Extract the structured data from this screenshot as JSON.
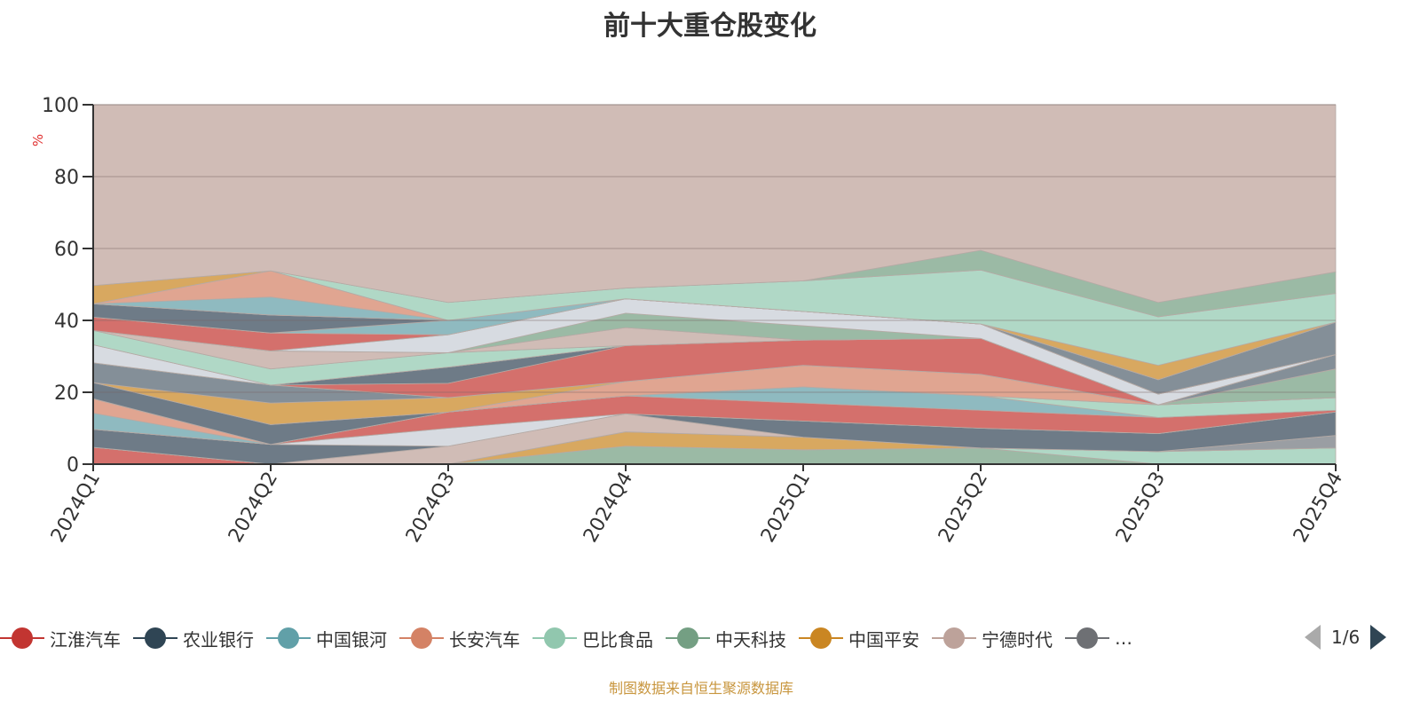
{
  "chart_data": {
    "type": "area",
    "stacked": true,
    "title": "前十大重仓股变化",
    "ylabel": "%",
    "xlabel": "",
    "ylim": [
      0,
      100
    ],
    "yticks": [
      "0",
      "20",
      "40",
      "60",
      "80",
      "100"
    ],
    "categories": [
      "2024Q1",
      "2024Q2",
      "2024Q3",
      "2024Q4",
      "2025Q1",
      "2025Q2",
      "2025Q3",
      "2025Q4"
    ],
    "legend": {
      "placement": "bottom",
      "items": [
        {
          "name": "江淮汽车",
          "color": "#c23531"
        },
        {
          "name": "农业银行",
          "color": "#2f4554"
        },
        {
          "name": "中国银河",
          "color": "#61a0a8"
        },
        {
          "name": "长安汽车",
          "color": "#d48265"
        },
        {
          "name": "巴比食品",
          "color": "#91c7ae"
        },
        {
          "name": "中天科技",
          "color": "#749f83"
        },
        {
          "name": "中国平安",
          "color": "#ca8622"
        },
        {
          "name": "宁德时代",
          "color": "#bda29a"
        },
        {
          "name": "…",
          "color": "#6e7074"
        }
      ],
      "page": "1/6"
    },
    "bands": [
      {
        "color": "#d4706c",
        "values": [
          4.7,
          0,
          0,
          0,
          0,
          0,
          0,
          0
        ]
      },
      {
        "color": "#9bbaa5",
        "values": [
          0,
          0,
          0,
          5,
          4,
          4.5,
          0,
          0
        ]
      },
      {
        "color": "#b0d8c6",
        "values": [
          0,
          0,
          0,
          0,
          0,
          0,
          3.5,
          4.5
        ]
      },
      {
        "color": "#d8a860",
        "values": [
          0,
          0,
          0,
          4,
          3.5,
          0,
          0,
          0
        ]
      },
      {
        "color": "#9a9ea3",
        "values": [
          0,
          0,
          0,
          0,
          0,
          0,
          0,
          3.5
        ]
      },
      {
        "color": "#d0bcb6",
        "values": [
          0,
          0,
          5,
          5,
          0,
          0,
          0,
          0
        ]
      },
      {
        "color": "#6e7b87",
        "values": [
          5,
          5.5,
          0,
          0,
          4.5,
          5.5,
          5,
          6.5
        ]
      },
      {
        "color": "#d7dbe1",
        "values": [
          0,
          0,
          5,
          0,
          0,
          0,
          0,
          0
        ]
      },
      {
        "color": "#d4706c",
        "values": [
          0,
          0,
          4.5,
          5,
          5,
          5,
          4.5,
          0.5
        ]
      },
      {
        "color": "#8fbac0",
        "values": [
          4.5,
          0,
          0,
          0,
          4.5,
          4,
          0,
          0
        ]
      },
      {
        "color": "#e0a591",
        "values": [
          4,
          0,
          0,
          0,
          0,
          0,
          0,
          0
        ]
      },
      {
        "color": "#b0d8c6",
        "values": [
          0,
          0,
          0,
          0,
          0,
          0,
          3.5,
          3.5
        ]
      },
      {
        "color": "#e0a591",
        "values": [
          0,
          0,
          0,
          4,
          6,
          6,
          0,
          0
        ]
      },
      {
        "color": "#9bbaa5",
        "values": [
          0,
          0,
          0,
          0,
          0,
          0,
          0,
          8
        ]
      },
      {
        "color": "#6e7b87",
        "values": [
          4.5,
          5.5,
          0,
          0,
          0,
          0,
          0,
          0
        ]
      },
      {
        "color": "#d8a860",
        "values": [
          0,
          6,
          4,
          0,
          0,
          0,
          0,
          0
        ]
      },
      {
        "color": "#848f98",
        "values": [
          5.5,
          5,
          0,
          0,
          0,
          0,
          0,
          4
        ]
      },
      {
        "color": "#d4706c",
        "values": [
          0,
          0,
          4,
          10,
          7,
          10,
          0,
          0
        ]
      },
      {
        "color": "#6e7b87",
        "values": [
          0,
          0,
          4.5,
          0,
          0,
          0,
          0,
          0
        ]
      },
      {
        "color": "#d7dbe1",
        "values": [
          5,
          0,
          0,
          0,
          0,
          0,
          0,
          0
        ]
      },
      {
        "color": "#b0d8c6",
        "values": [
          4,
          4.5,
          4,
          0,
          0,
          0,
          0,
          0
        ]
      },
      {
        "color": "#d0bcb6",
        "values": [
          0,
          5,
          0,
          5,
          0,
          0,
          0,
          0
        ]
      },
      {
        "color": "#9bbaa5",
        "values": [
          0,
          0,
          0,
          4,
          4,
          0,
          0,
          0
        ]
      },
      {
        "color": "#d7dbe1",
        "values": [
          0,
          0,
          5,
          4,
          4,
          4,
          3,
          0
        ]
      },
      {
        "color": "#d4706c",
        "values": [
          3.7,
          5,
          0,
          0,
          0,
          0,
          0,
          0
        ]
      },
      {
        "color": "#8fbac0",
        "values": [
          0,
          0,
          4,
          0,
          0,
          0,
          0,
          0
        ]
      },
      {
        "color": "#6e7b87",
        "values": [
          3.7,
          5,
          0,
          0,
          0,
          0,
          0,
          0
        ]
      },
      {
        "color": "#848f98",
        "values": [
          0,
          0,
          0,
          0,
          0,
          0,
          4,
          9
        ]
      },
      {
        "color": "#8fbac0",
        "values": [
          0,
          5,
          0,
          0,
          0,
          0,
          0,
          0
        ]
      },
      {
        "color": "#e0a591",
        "values": [
          0,
          7.3,
          0,
          0,
          0,
          0,
          0,
          0
        ]
      },
      {
        "color": "#d8a860",
        "values": [
          5.1,
          0,
          0,
          0,
          0,
          0,
          4,
          0
        ]
      },
      {
        "color": "#b0d8c6",
        "values": [
          0,
          0,
          5,
          3,
          8.5,
          15,
          13.5,
          8
        ]
      },
      {
        "color": "#9bbaa5",
        "values": [
          0,
          0,
          0,
          0,
          0,
          5.5,
          4,
          6
        ]
      },
      {
        "color": "#d0bcb6",
        "values": [
          50.3,
          46.2,
          55,
          51,
          49,
          40.5,
          55,
          46.5
        ]
      }
    ]
  },
  "footer": "制图数据来自恒生聚源数据库"
}
